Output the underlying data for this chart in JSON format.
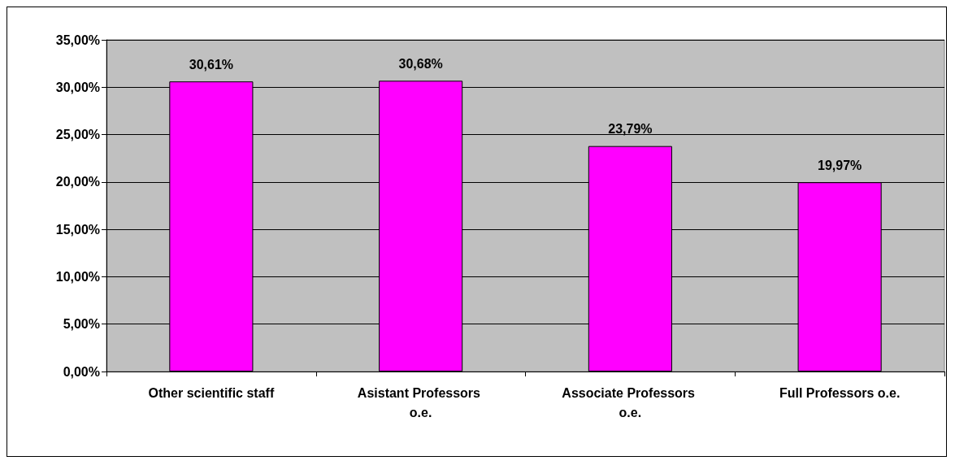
{
  "chart_data": {
    "type": "bar",
    "categories": [
      "Other scientific staff",
      "Asistant Professors o.e.",
      "Associate Professors o.e.",
      "Full Professors o.e."
    ],
    "values": [
      30.61,
      30.68,
      23.79,
      19.97
    ],
    "color": "#ff00ff",
    "value_labels": [
      "30,61%",
      "30,68%",
      "23,79%",
      "19,97%"
    ],
    "ylim": [
      0,
      35
    ],
    "yticks": [
      {
        "value": 0,
        "label": "0,00%"
      },
      {
        "value": 5,
        "label": "5,00%"
      },
      {
        "value": 10,
        "label": "10,00%"
      },
      {
        "value": 15,
        "label": "15,00%"
      },
      {
        "value": 20,
        "label": "20,00%"
      },
      {
        "value": 25,
        "label": "25,00%"
      },
      {
        "value": 30,
        "label": "30,00%"
      },
      {
        "value": 35,
        "label": "35,00%"
      }
    ],
    "grid": "y"
  }
}
